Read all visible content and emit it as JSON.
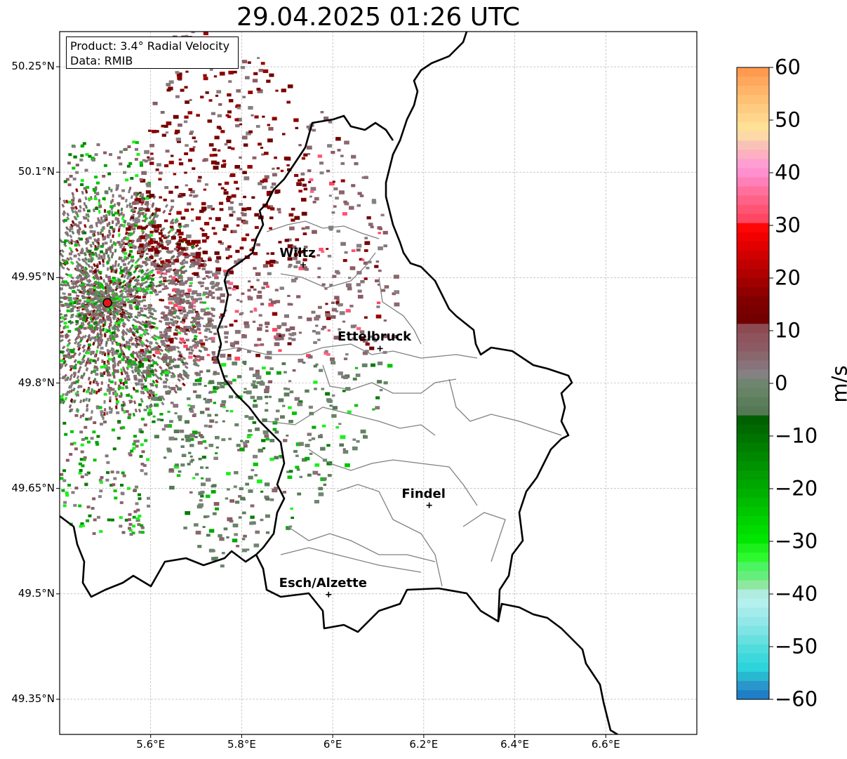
{
  "title": "29.04.2025 01:26 UTC",
  "info": {
    "product": "Product: 3.4° Radial Velocity",
    "data_source": "Data: RMIB"
  },
  "lat_labels": [
    {
      "value": 50.25,
      "text": "50.25°N"
    },
    {
      "value": 50.1,
      "text": "50.1°N"
    },
    {
      "value": 49.95,
      "text": "49.95°N"
    },
    {
      "value": 49.8,
      "text": "49.8°N"
    },
    {
      "value": 49.65,
      "text": "49.65°N"
    },
    {
      "value": 49.5,
      "text": "49.5°N"
    },
    {
      "value": 49.35,
      "text": "49.35°N"
    }
  ],
  "lon_labels": [
    {
      "value": 5.6,
      "text": "5.6°E"
    },
    {
      "value": 5.8,
      "text": "5.8°E"
    },
    {
      "value": 6.0,
      "text": "6°E"
    },
    {
      "value": 6.2,
      "text": "6.2°E"
    },
    {
      "value": 6.4,
      "text": "6.4°E"
    },
    {
      "value": 6.6,
      "text": "6.6°E"
    }
  ],
  "map_extent": {
    "lon_min": 5.4,
    "lon_max": 6.8,
    "lat_min": 49.3,
    "lat_max": 50.3
  },
  "cities": [
    {
      "name": "Wiltz",
      "lon": 5.935,
      "lat": 49.968
    },
    {
      "name": "Ettelbruck",
      "lon": 6.104,
      "lat": 49.849
    },
    {
      "name": "Findel",
      "lon": 6.212,
      "lat": 49.626
    },
    {
      "name": "Esch/Alzette",
      "lon": 5.991,
      "lat": 49.499
    }
  ],
  "radar_site": {
    "lon": 5.505,
    "lat": 49.914,
    "color": "#e8141c"
  },
  "colorbar": {
    "label": "m/s",
    "vmin": -60,
    "vmax": 60,
    "ticks": [
      {
        "value": 60,
        "text": "60"
      },
      {
        "value": 50,
        "text": "50"
      },
      {
        "value": 40,
        "text": "40"
      },
      {
        "value": 30,
        "text": "30"
      },
      {
        "value": 20,
        "text": "20"
      },
      {
        "value": 10,
        "text": "10"
      },
      {
        "value": 0,
        "text": "0"
      },
      {
        "value": -10,
        "text": "−10"
      },
      {
        "value": -20,
        "text": "−20"
      },
      {
        "value": -30,
        "text": "−30"
      },
      {
        "value": -40,
        "text": "−40"
      },
      {
        "value": -50,
        "text": "−50"
      },
      {
        "value": -60,
        "text": "−60"
      }
    ],
    "colors_top_to_bottom": [
      "#ff9a4e",
      "#ffa75c",
      "#ffb468",
      "#ffc074",
      "#ffcb80",
      "#ffd68c",
      "#ffe097",
      "#fcd9a6",
      "#f9c2b6",
      "#fcb0c0",
      "#ff9ed0",
      "#ff8fcf",
      "#ff80b8",
      "#ff709c",
      "#ff6287",
      "#ff5473",
      "#ff4662",
      "#ff0606",
      "#f00000",
      "#e00000",
      "#d00000",
      "#c00000",
      "#b00000",
      "#a00000",
      "#900000",
      "#800000",
      "#7a0000",
      "#720000",
      "#8c4a53",
      "#8e535c",
      "#8b5a63",
      "#8a666d",
      "#877379",
      "#858082",
      "#6f8570",
      "#668366",
      "#5d7e5c",
      "#547954",
      "#006000",
      "#006a00",
      "#007400",
      "#007e00",
      "#008800",
      "#009200",
      "#009c00",
      "#00a600",
      "#00b000",
      "#00bc00",
      "#00c600",
      "#00d200",
      "#00dc00",
      "#00e600",
      "#1cf01c",
      "#2ef82e",
      "#4cf462",
      "#66ee7c",
      "#8ee89e",
      "#b0ece0",
      "#b4f0ee",
      "#a4ecec",
      "#92e8e8",
      "#7ee4e4",
      "#68e0e0",
      "#50dcdc",
      "#3cd8dc",
      "#2ed4dc",
      "#28b8d0",
      "#2a96cc",
      "#1f7fc6"
    ]
  }
}
